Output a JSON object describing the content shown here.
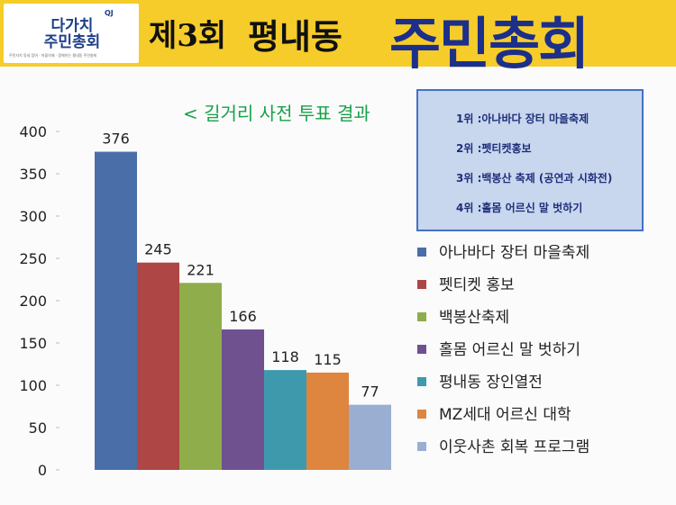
{
  "header": {
    "badge_title": "다가치\n주민총회",
    "badge_logo": "QJ",
    "badge_sub": "주민자치 동네 참여 · 마을의제 · 함께하는 평내동 주민총회",
    "edition": "제3회",
    "place": "평내동",
    "assembly": "주민총회"
  },
  "rankings": [
    "1위 :아나바다 장터 마을축제",
    "2위 :펫티켓홍보",
    "3위 :백봉산 축제 (공연과 시화전)",
    "4위 :홀몸 어르신 말 벗하기"
  ],
  "colors": {
    "banner": "#f6cc2a",
    "title_green": "#17a04a",
    "assembly_blue": "#1c2f8a",
    "rank_box": "#c8d6ee"
  },
  "chart_data": {
    "type": "bar",
    "title": "< 길거리 사전 투표 결과",
    "categories": [
      "아나바다 장터 마을축제",
      "펫티켓 홍보",
      "백봉산축제",
      "홀몸 어르신 말 벗하기",
      "평내동 장인열전",
      "MZ세대 어르신 대학",
      "이웃사촌 회복 프로그램"
    ],
    "values": [
      376,
      245,
      221,
      166,
      118,
      115,
      77
    ],
    "data_labels": [
      "376",
      "245",
      "221",
      "166",
      "118",
      "115",
      "77"
    ],
    "colors": [
      "#4a6fa8",
      "#ad4644",
      "#8fad4a",
      "#6f5190",
      "#3f99ad",
      "#de8540",
      "#9aaed2"
    ],
    "ylim": [
      0,
      400
    ],
    "yticks": [
      "0",
      "50",
      "100",
      "150",
      "200",
      "250",
      "300",
      "350",
      "400"
    ],
    "legend_position": "right",
    "grid": false
  }
}
